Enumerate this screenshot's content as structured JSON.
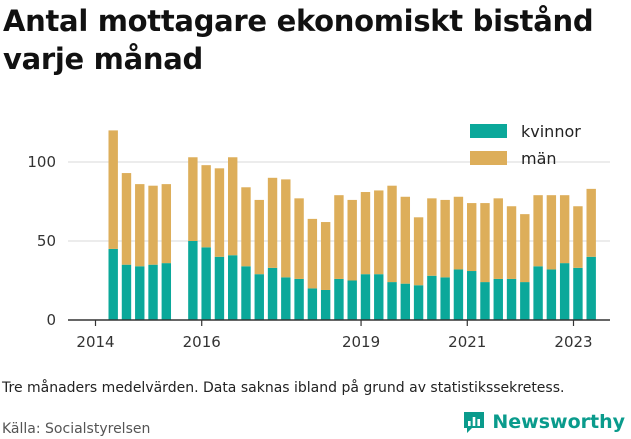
{
  "title": "Antal mottagare ekonomiskt bistånd varje månad",
  "note": "Tre månaders medelvärden. Data saknas ibland på grund av statistikssekretess.",
  "source": "Källa: Socialstyrelsen",
  "brand": "Newsworthy",
  "colors": {
    "kvinnor": "#0ba89a",
    "man": "#ddae5a",
    "grid": "#d9d9d9",
    "brand": "#0a9b8c"
  },
  "legend": [
    {
      "key": "kvinnor",
      "label": "kvinnor"
    },
    {
      "key": "man",
      "label": "män"
    }
  ],
  "chart_data": {
    "type": "bar",
    "stacked": true,
    "ylim": [
      0,
      120
    ],
    "yticks": [
      0,
      50,
      100
    ],
    "xticks": [
      {
        "label": "2014",
        "date": "2014-01"
      },
      {
        "label": "2016",
        "date": "2016-01"
      },
      {
        "label": "2019",
        "date": "2019-01"
      },
      {
        "label": "2021",
        "date": "2021-01"
      },
      {
        "label": "2023",
        "date": "2023-01"
      }
    ],
    "categories": [
      "2014-05",
      "2014-08",
      "2014-11",
      "2015-02",
      "2015-05",
      "2015-11",
      "2016-02",
      "2016-05",
      "2016-08",
      "2016-11",
      "2017-02",
      "2017-05",
      "2017-08",
      "2017-11",
      "2018-02",
      "2018-05",
      "2018-08",
      "2018-11",
      "2019-02",
      "2019-05",
      "2019-08",
      "2019-11",
      "2020-02",
      "2020-05",
      "2020-08",
      "2020-11",
      "2021-02",
      "2021-05",
      "2021-08",
      "2021-11",
      "2022-02",
      "2022-05",
      "2022-08",
      "2022-11",
      "2023-02",
      "2023-05"
    ],
    "series": [
      {
        "name": "kvinnor",
        "key": "kvinnor",
        "values": [
          45,
          35,
          34,
          35,
          36,
          50,
          46,
          40,
          41,
          34,
          29,
          33,
          27,
          26,
          20,
          19,
          26,
          25,
          29,
          29,
          24,
          23,
          22,
          28,
          27,
          32,
          31,
          24,
          26,
          26,
          24,
          34,
          32,
          36,
          33,
          40
        ]
      },
      {
        "name": "män",
        "key": "man",
        "values": [
          75,
          58,
          52,
          50,
          50,
          53,
          52,
          56,
          62,
          50,
          47,
          57,
          62,
          51,
          44,
          43,
          53,
          51,
          52,
          53,
          61,
          55,
          43,
          49,
          49,
          46,
          43,
          50,
          51,
          46,
          43,
          45,
          47,
          43,
          39,
          43
        ]
      }
    ]
  }
}
